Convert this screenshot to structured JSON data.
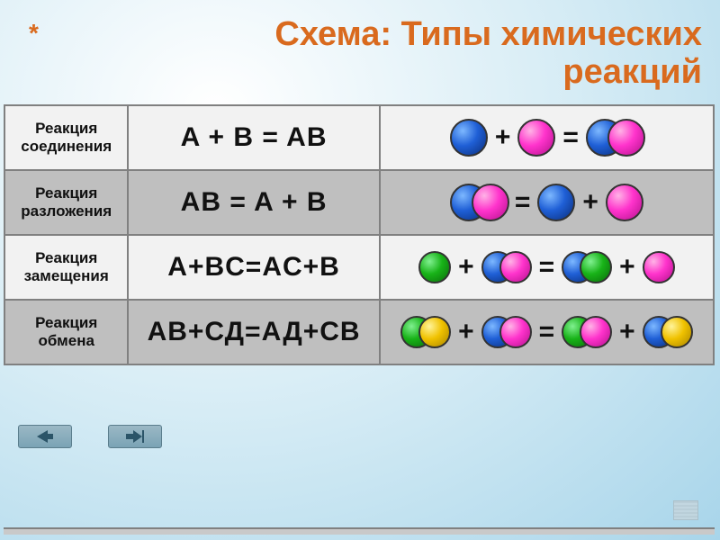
{
  "title_line1": "Схема: Типы химических",
  "title_line2": "реакций",
  "colors": {
    "blue": {
      "hl": "#7db8ff",
      "c": "#1f5fd6",
      "cd": "#0a2d78"
    },
    "pink": {
      "hl": "#ffb3e6",
      "c": "#ff33cc",
      "cd": "#b3118c"
    },
    "green": {
      "hl": "#80f090",
      "c": "#18b318",
      "cd": "#0a6b0a"
    },
    "yellow": {
      "hl": "#fff39a",
      "c": "#f0c200",
      "cd": "#a88300"
    }
  },
  "operators": {
    "plus": "+",
    "eq": "="
  },
  "rows": [
    {
      "label_l1": "Реакция",
      "label_l2": "соединения",
      "formula": "A + B = AB",
      "shade": "light",
      "diagram": [
        {
          "t": "ball",
          "c": "blue"
        },
        {
          "t": "op",
          "v": "plus"
        },
        {
          "t": "ball",
          "c": "pink"
        },
        {
          "t": "op",
          "v": "eq"
        },
        {
          "t": "pair",
          "c1": "blue",
          "c2": "pink"
        }
      ]
    },
    {
      "label_l1": "Реакция",
      "label_l2": "разложения",
      "formula": "AB = A + B",
      "shade": "dark",
      "diagram": [
        {
          "t": "pair",
          "c1": "blue",
          "c2": "pink"
        },
        {
          "t": "op",
          "v": "eq"
        },
        {
          "t": "ball",
          "c": "blue"
        },
        {
          "t": "op",
          "v": "plus"
        },
        {
          "t": "ball",
          "c": "pink"
        }
      ]
    },
    {
      "label_l1": "Реакция",
      "label_l2": "замещения",
      "formula": "A+BC=AC+B",
      "shade": "light",
      "diagram": [
        {
          "t": "ball",
          "c": "green",
          "sm": true
        },
        {
          "t": "op",
          "v": "plus"
        },
        {
          "t": "pair",
          "c1": "blue",
          "c2": "pink",
          "sm": true
        },
        {
          "t": "op",
          "v": "eq"
        },
        {
          "t": "pair",
          "c1": "blue",
          "c2": "green",
          "sm": true
        },
        {
          "t": "op",
          "v": "plus"
        },
        {
          "t": "ball",
          "c": "pink",
          "sm": true
        }
      ]
    },
    {
      "label_l1": "Реакция",
      "label_l2": "обмена",
      "formula": "АВ+СД=АД+СВ",
      "shade": "dark",
      "diagram": [
        {
          "t": "pair",
          "c1": "green",
          "c2": "yellow",
          "sm": true
        },
        {
          "t": "op",
          "v": "plus"
        },
        {
          "t": "pair",
          "c1": "blue",
          "c2": "pink",
          "sm": true
        },
        {
          "t": "op",
          "v": "eq"
        },
        {
          "t": "pair",
          "c1": "green",
          "c2": "pink",
          "sm": true
        },
        {
          "t": "op",
          "v": "plus"
        },
        {
          "t": "pair",
          "c1": "blue",
          "c2": "yellow",
          "sm": true
        }
      ]
    }
  ]
}
